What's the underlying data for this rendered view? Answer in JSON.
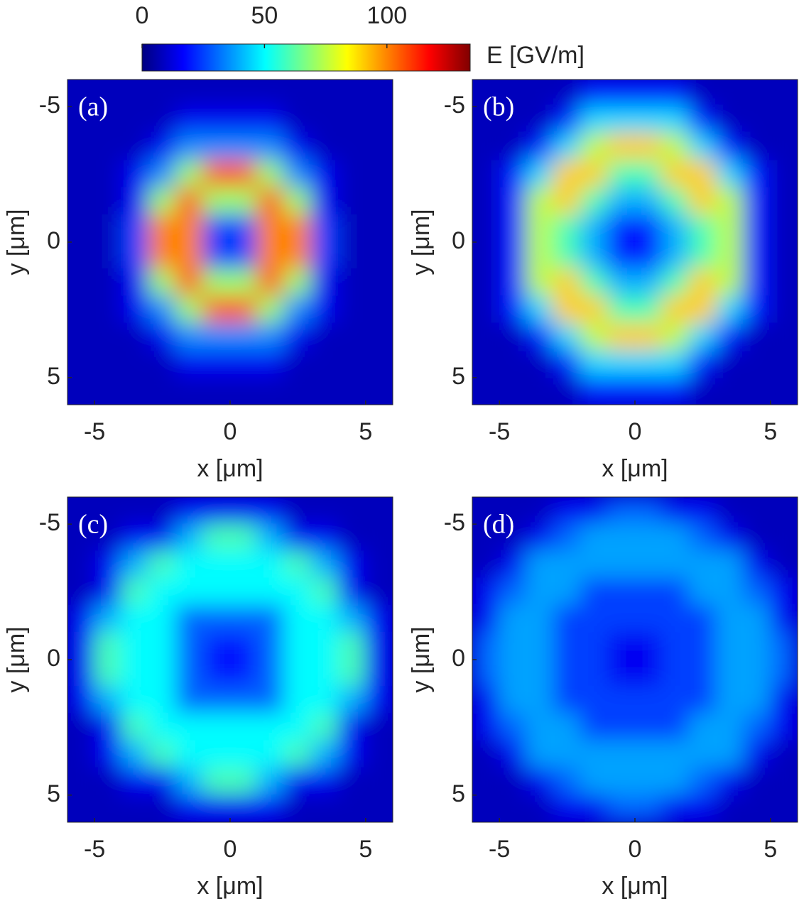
{
  "colorbar": {
    "label": "E [GV/m]",
    "lim": [
      0,
      134
    ],
    "ticks": [
      0,
      50,
      100
    ]
  },
  "chart_data": [
    {
      "type": "heatmap",
      "panel": "(a)",
      "xlabel": "x [μm]",
      "ylabel": "y [μm]",
      "xlim": [
        -6,
        6
      ],
      "ylim": [
        -6,
        6
      ],
      "y_reversed": true,
      "xticks": [
        -5,
        0,
        5
      ],
      "yticks": [
        -5,
        0,
        5
      ],
      "x": [
        -5.5,
        -4.5,
        -3.5,
        -2.5,
        -1.5,
        -0.5,
        0.5,
        1.5,
        2.5,
        3.5,
        4.5,
        5.5
      ],
      "y": [
        -5.5,
        -4.5,
        -3.5,
        -2.5,
        -1.5,
        -0.5,
        0.5,
        1.5,
        2.5,
        3.5,
        4.5,
        5.5
      ],
      "z": [
        [
          8,
          8,
          8,
          8,
          8,
          8,
          8,
          8,
          8,
          8,
          8,
          8
        ],
        [
          8,
          8,
          8,
          8,
          15,
          15,
          15,
          15,
          8,
          8,
          8,
          8
        ],
        [
          8,
          8,
          8,
          15,
          35,
          35,
          35,
          35,
          15,
          8,
          8,
          8
        ],
        [
          8,
          8,
          15,
          35,
          70,
          105,
          105,
          70,
          35,
          15,
          8,
          8
        ],
        [
          8,
          8,
          15,
          70,
          105,
          70,
          70,
          105,
          70,
          15,
          8,
          8
        ],
        [
          8,
          8,
          25,
          100,
          100,
          25,
          25,
          100,
          100,
          25,
          8,
          8
        ],
        [
          8,
          8,
          25,
          100,
          100,
          25,
          25,
          100,
          100,
          25,
          8,
          8
        ],
        [
          8,
          8,
          15,
          70,
          105,
          70,
          70,
          105,
          70,
          15,
          8,
          8
        ],
        [
          8,
          8,
          15,
          35,
          70,
          105,
          105,
          70,
          35,
          15,
          8,
          8
        ],
        [
          8,
          8,
          8,
          15,
          35,
          35,
          35,
          35,
          15,
          8,
          8,
          8
        ],
        [
          8,
          8,
          8,
          8,
          15,
          15,
          15,
          15,
          8,
          8,
          8,
          8
        ],
        [
          8,
          8,
          8,
          8,
          8,
          8,
          8,
          8,
          8,
          8,
          8,
          8
        ]
      ]
    },
    {
      "type": "heatmap",
      "panel": "(b)",
      "xlabel": "x [μm]",
      "ylabel": "y [μm]",
      "xlim": [
        -6,
        6
      ],
      "ylim": [
        -6,
        6
      ],
      "y_reversed": true,
      "xticks": [
        -5,
        0,
        5
      ],
      "yticks": [
        -5,
        0,
        5
      ],
      "x": [
        -5.5,
        -4.5,
        -3.5,
        -2.5,
        -1.5,
        -0.5,
        0.5,
        1.5,
        2.5,
        3.5,
        4.5,
        5.5
      ],
      "y": [
        -5.5,
        -4.5,
        -3.5,
        -2.5,
        -1.5,
        -0.5,
        0.5,
        1.5,
        2.5,
        3.5,
        4.5,
        5.5
      ],
      "z": [
        [
          8,
          8,
          8,
          8,
          20,
          20,
          20,
          20,
          8,
          8,
          8,
          8
        ],
        [
          8,
          8,
          8,
          20,
          45,
          45,
          45,
          45,
          20,
          8,
          8,
          8
        ],
        [
          8,
          8,
          20,
          45,
          75,
          90,
          90,
          75,
          45,
          20,
          8,
          8
        ],
        [
          8,
          20,
          45,
          90,
          90,
          60,
          60,
          90,
          90,
          45,
          20,
          8
        ],
        [
          8,
          20,
          75,
          90,
          60,
          40,
          40,
          60,
          90,
          75,
          20,
          8
        ],
        [
          8,
          20,
          75,
          60,
          40,
          20,
          20,
          40,
          60,
          75,
          20,
          8
        ],
        [
          8,
          20,
          75,
          60,
          40,
          20,
          20,
          40,
          60,
          75,
          20,
          8
        ],
        [
          8,
          20,
          75,
          90,
          60,
          40,
          40,
          60,
          90,
          75,
          20,
          8
        ],
        [
          8,
          20,
          45,
          90,
          90,
          60,
          60,
          90,
          90,
          45,
          20,
          8
        ],
        [
          8,
          8,
          20,
          45,
          75,
          90,
          90,
          75,
          45,
          20,
          8,
          8
        ],
        [
          8,
          8,
          8,
          20,
          45,
          45,
          45,
          45,
          20,
          8,
          8,
          8
        ],
        [
          8,
          8,
          8,
          8,
          20,
          20,
          20,
          20,
          8,
          8,
          8,
          8
        ]
      ]
    },
    {
      "type": "heatmap",
      "panel": "(c)",
      "xlabel": "x [μm]",
      "ylabel": "y [μm]",
      "xlim": [
        -6,
        6
      ],
      "ylim": [
        -6,
        6
      ],
      "y_reversed": true,
      "xticks": [
        -5,
        0,
        5
      ],
      "yticks": [
        -5,
        0,
        5
      ],
      "x": [
        -5.5,
        -4.5,
        -3.5,
        -2.5,
        -1.5,
        -0.5,
        0.5,
        1.5,
        2.5,
        3.5,
        4.5,
        5.5
      ],
      "y": [
        -5.5,
        -4.5,
        -3.5,
        -2.5,
        -1.5,
        -0.5,
        0.5,
        1.5,
        2.5,
        3.5,
        4.5,
        5.5
      ],
      "z": [
        [
          8,
          8,
          8,
          8,
          15,
          15,
          15,
          15,
          8,
          8,
          8,
          8
        ],
        [
          8,
          8,
          15,
          15,
          40,
          60,
          60,
          40,
          15,
          15,
          8,
          8
        ],
        [
          8,
          15,
          40,
          60,
          50,
          50,
          50,
          50,
          60,
          40,
          15,
          8
        ],
        [
          8,
          15,
          60,
          50,
          50,
          50,
          50,
          50,
          50,
          60,
          15,
          8
        ],
        [
          15,
          40,
          50,
          50,
          30,
          30,
          30,
          30,
          50,
          50,
          40,
          15
        ],
        [
          15,
          60,
          50,
          50,
          30,
          20,
          20,
          30,
          50,
          50,
          60,
          15
        ],
        [
          15,
          60,
          50,
          50,
          30,
          20,
          20,
          30,
          50,
          50,
          60,
          15
        ],
        [
          15,
          40,
          50,
          50,
          30,
          30,
          30,
          30,
          50,
          50,
          40,
          15
        ],
        [
          8,
          15,
          60,
          50,
          50,
          50,
          50,
          50,
          50,
          60,
          15,
          8
        ],
        [
          8,
          15,
          40,
          60,
          50,
          50,
          50,
          50,
          60,
          40,
          15,
          8
        ],
        [
          8,
          8,
          15,
          15,
          40,
          60,
          60,
          40,
          15,
          15,
          8,
          8
        ],
        [
          8,
          8,
          8,
          8,
          15,
          15,
          15,
          15,
          8,
          8,
          8,
          8
        ]
      ]
    },
    {
      "type": "heatmap",
      "panel": "(d)",
      "xlabel": "x [μm]",
      "ylabel": "y [μm]",
      "xlim": [
        -6,
        6
      ],
      "ylim": [
        -6,
        6
      ],
      "y_reversed": true,
      "xticks": [
        -5,
        0,
        5
      ],
      "yticks": [
        -5,
        0,
        5
      ],
      "x": [
        -5.5,
        -4.5,
        -3.5,
        -2.5,
        -1.5,
        -0.5,
        0.5,
        1.5,
        2.5,
        3.5,
        4.5,
        5.5
      ],
      "y": [
        -5.5,
        -4.5,
        -3.5,
        -2.5,
        -1.5,
        -0.5,
        0.5,
        1.5,
        2.5,
        3.5,
        4.5,
        5.5
      ],
      "z": [
        [
          8,
          8,
          8,
          15,
          15,
          30,
          30,
          15,
          15,
          8,
          8,
          8
        ],
        [
          8,
          8,
          15,
          30,
          38,
          38,
          38,
          38,
          30,
          15,
          8,
          8
        ],
        [
          8,
          15,
          38,
          38,
          38,
          38,
          38,
          38,
          38,
          38,
          15,
          8
        ],
        [
          15,
          30,
          38,
          38,
          25,
          25,
          25,
          25,
          38,
          38,
          30,
          15
        ],
        [
          15,
          38,
          38,
          25,
          25,
          25,
          25,
          25,
          25,
          38,
          38,
          15
        ],
        [
          30,
          38,
          38,
          25,
          25,
          15,
          15,
          25,
          25,
          38,
          38,
          30
        ],
        [
          30,
          38,
          38,
          25,
          25,
          15,
          15,
          25,
          25,
          38,
          38,
          30
        ],
        [
          15,
          38,
          38,
          25,
          25,
          25,
          25,
          25,
          25,
          38,
          38,
          15
        ],
        [
          15,
          30,
          38,
          38,
          25,
          25,
          25,
          25,
          38,
          38,
          30,
          15
        ],
        [
          8,
          15,
          38,
          38,
          38,
          38,
          38,
          38,
          38,
          38,
          15,
          8
        ],
        [
          8,
          8,
          15,
          30,
          38,
          38,
          38,
          38,
          30,
          15,
          8,
          8
        ],
        [
          8,
          8,
          8,
          15,
          15,
          30,
          30,
          15,
          15,
          8,
          8,
          8
        ]
      ]
    }
  ]
}
